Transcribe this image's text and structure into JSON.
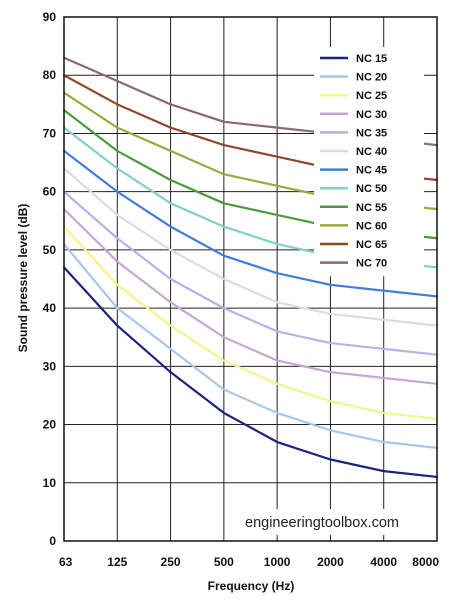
{
  "chart_data": {
    "type": "line",
    "title": "",
    "xlabel": "Frequency (Hz)",
    "ylabel": "Sound pressure level (dB)",
    "categories": [
      "63",
      "125",
      "250",
      "500",
      "1000",
      "2000",
      "4000",
      "8000"
    ],
    "ylim": [
      0,
      90
    ],
    "yticks": [
      "0",
      "10",
      "20",
      "30",
      "40",
      "50",
      "60",
      "70",
      "80",
      "90"
    ],
    "grid": true,
    "legend_position": "top-right",
    "watermark": "engineeringtoolbox.com",
    "series": [
      {
        "name": "NC 15",
        "color": "#1a237e",
        "values": [
          47,
          37,
          29,
          22,
          17,
          14,
          12,
          11
        ]
      },
      {
        "name": "NC 20",
        "color": "#a9c8e8",
        "values": [
          51,
          40,
          33,
          26,
          22,
          19,
          17,
          16
        ]
      },
      {
        "name": "NC 25",
        "color": "#f3f58a",
        "values": [
          54,
          44,
          37,
          31,
          27,
          24,
          22,
          21
        ]
      },
      {
        "name": "NC 30",
        "color": "#c6a7d1",
        "values": [
          57,
          48,
          41,
          35,
          31,
          29,
          28,
          27
        ]
      },
      {
        "name": "NC 35",
        "color": "#b9b0e8",
        "values": [
          60,
          52,
          45,
          40,
          36,
          34,
          33,
          32
        ]
      },
      {
        "name": "NC 40",
        "color": "#dcdcdc",
        "values": [
          64,
          56,
          50,
          45,
          41,
          39,
          38,
          37
        ]
      },
      {
        "name": "NC 45",
        "color": "#3f7fd9",
        "values": [
          67,
          60,
          54,
          49,
          46,
          44,
          43,
          42
        ]
      },
      {
        "name": "NC 50",
        "color": "#7fd1c9",
        "values": [
          71,
          64,
          58,
          54,
          51,
          49,
          48,
          47
        ]
      },
      {
        "name": "NC 55",
        "color": "#4d9a3d",
        "values": [
          74,
          67,
          62,
          58,
          56,
          54,
          53,
          52
        ]
      },
      {
        "name": "NC 60",
        "color": "#9fa83c",
        "values": [
          77,
          71,
          67,
          63,
          61,
          59,
          58,
          57
        ]
      },
      {
        "name": "NC 65",
        "color": "#8c4a2a",
        "values": [
          80,
          75,
          71,
          68,
          66,
          64,
          63,
          62
        ]
      },
      {
        "name": "NC 70",
        "color": "#8a6a6a",
        "values": [
          83,
          79,
          75,
          72,
          71,
          70,
          69,
          68
        ]
      }
    ]
  }
}
